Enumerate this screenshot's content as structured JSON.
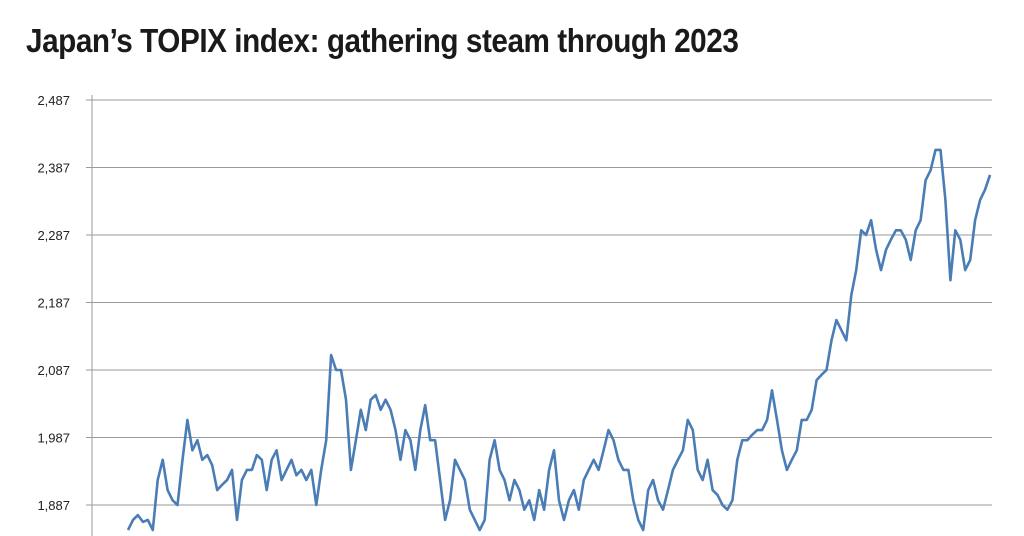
{
  "chart_data": {
    "type": "line",
    "title": "Japan’s TOPIX index: gathering steam through 2023",
    "xlabel": "",
    "ylabel": "",
    "ylim": [
      1845,
      2487
    ],
    "yticks": [
      2487,
      2387,
      2287,
      2187,
      2087,
      1987,
      1887
    ],
    "ytick_labels": [
      "2,487",
      "2,387",
      "2,287",
      "2,187",
      "2,087",
      "1,987",
      "1,887"
    ],
    "grid": "horizontal",
    "line_color": "#4a7db5",
    "grid_color": "#9a9a9a",
    "values": [
      1850,
      1865,
      1872,
      1862,
      1865,
      1850,
      1924,
      1954,
      1909,
      1894,
      1887,
      1954,
      2013,
      1968,
      1983,
      1954,
      1961,
      1946,
      1909,
      1917,
      1924,
      1939,
      1865,
      1924,
      1939,
      1939,
      1961,
      1954,
      1909,
      1954,
      1968,
      1924,
      1939,
      1954,
      1931,
      1939,
      1924,
      1939,
      1887,
      1939,
      1983,
      2109,
      2087,
      2087,
      2043,
      1939,
      1983,
      2028,
      1998,
      2043,
      2050,
      2028,
      2043,
      2028,
      1998,
      1954,
      1998,
      1983,
      1939,
      1998,
      2035,
      1983,
      1983,
      1924,
      1865,
      1894,
      1954,
      1939,
      1924,
      1880,
      1865,
      1850,
      1865,
      1954,
      1983,
      1939,
      1924,
      1894,
      1924,
      1909,
      1880,
      1894,
      1865,
      1909,
      1880,
      1939,
      1968,
      1894,
      1865,
      1894,
      1909,
      1880,
      1924,
      1939,
      1954,
      1939,
      1968,
      1998,
      1983,
      1954,
      1939,
      1939,
      1894,
      1865,
      1850,
      1909,
      1924,
      1894,
      1880,
      1909,
      1939,
      1954,
      1968,
      2013,
      1998,
      1939,
      1924,
      1954,
      1909,
      1902,
      1887,
      1880,
      1894,
      1954,
      1983,
      1983,
      1991,
      1998,
      1998,
      2013,
      2057,
      2013,
      1968,
      1939,
      1954,
      1968,
      2013,
      2013,
      2028,
      2072,
      2080,
      2087,
      2131,
      2161,
      2146,
      2131,
      2198,
      2235,
      2294,
      2287,
      2309,
      2265,
      2235,
      2265,
      2280,
      2294,
      2294,
      2280,
      2250,
      2294,
      2309,
      2368,
      2383,
      2413,
      2413,
      2339,
      2220,
      2294,
      2280,
      2235,
      2250,
      2309,
      2339,
      2354,
      2376
    ]
  }
}
